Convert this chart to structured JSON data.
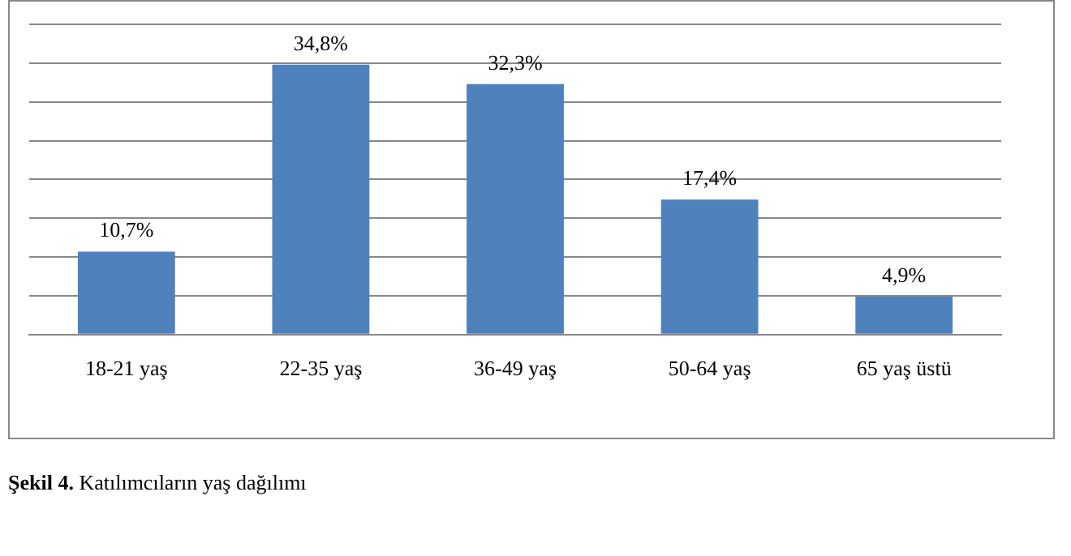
{
  "chart_data": {
    "type": "bar",
    "categories": [
      "18-21 yaş",
      "22-35 yaş",
      "36-49 yaş",
      "50-64 yaş",
      "65 yaş üstü"
    ],
    "values": [
      10.7,
      34.8,
      32.3,
      17.4,
      4.9
    ],
    "color": "#4f81bd",
    "value_labels": [
      "10,7%",
      "34,8%",
      "32,3%",
      "17,4%",
      "4,9%"
    ],
    "ylim": [
      0,
      40
    ],
    "yticks": [
      {
        "value": 0,
        "label": null
      },
      {
        "value": 5,
        "label": null
      },
      {
        "value": 10,
        "label": null
      },
      {
        "value": 15,
        "label": null
      },
      {
        "value": 20,
        "label": null
      },
      {
        "value": 25,
        "label": null
      },
      {
        "value": 30,
        "label": null
      },
      {
        "value": 35,
        "label": null
      },
      {
        "value": 40,
        "label": null
      }
    ],
    "tick_labels": "x",
    "grid": "y",
    "legend": false,
    "annotations": [
      "Şekil 4. Katılımcıların yaş dağılımı"
    ]
  }
}
